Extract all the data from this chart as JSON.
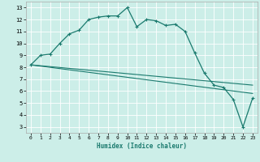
{
  "xlabel": "Humidex (Indice chaleur)",
  "bg_color": "#cceee8",
  "line_color": "#1a7a6e",
  "grid_color": "#ffffff",
  "xlim": [
    -0.5,
    23.5
  ],
  "ylim": [
    2.5,
    13.5
  ],
  "xticks": [
    0,
    1,
    2,
    3,
    4,
    5,
    6,
    7,
    8,
    9,
    10,
    11,
    12,
    13,
    14,
    15,
    16,
    17,
    18,
    19,
    20,
    21,
    22,
    23
  ],
  "yticks": [
    3,
    4,
    5,
    6,
    7,
    8,
    9,
    10,
    11,
    12,
    13
  ],
  "main_x": [
    0,
    1,
    2,
    3,
    4,
    5,
    6,
    7,
    8,
    9,
    10,
    11,
    12,
    13,
    14,
    15,
    16,
    17,
    18,
    19,
    20,
    21,
    22,
    23
  ],
  "main_y": [
    8.2,
    9.0,
    9.1,
    10.0,
    10.8,
    11.1,
    12.0,
    12.2,
    12.3,
    12.3,
    13.0,
    11.4,
    12.0,
    11.9,
    11.5,
    11.6,
    11.0,
    9.2,
    7.5,
    6.5,
    6.3,
    5.3,
    3.0,
    5.4
  ],
  "line2_x": [
    0,
    23
  ],
  "line2_y": [
    8.2,
    6.5
  ],
  "line3_x": [
    0,
    23
  ],
  "line3_y": [
    8.2,
    5.8
  ]
}
